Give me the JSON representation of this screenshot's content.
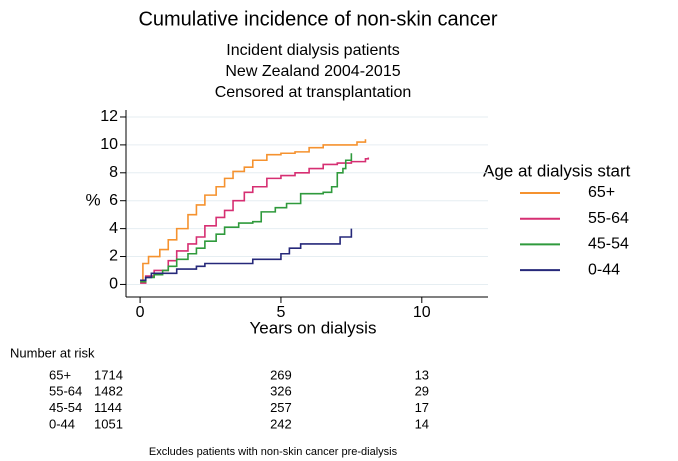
{
  "chart_data": {
    "type": "step",
    "title": "Cumulative incidence of non-skin cancer",
    "subtitles": [
      "Incident dialysis patients",
      "New Zealand 2004-2015",
      "Censored at transplantation"
    ],
    "x_label": "Years on dialysis",
    "y_label": "%",
    "xlim": [
      -0.5,
      12.35
    ],
    "ylim": [
      -0.9,
      12.5
    ],
    "xticks": [
      0,
      5,
      10
    ],
    "yticks": [
      0,
      2,
      4,
      6,
      8,
      10,
      12
    ],
    "grid": true,
    "legend_title": "Age at dialysis start",
    "legend_position": "right",
    "series": [
      {
        "name": "65+",
        "color": "#f5922f",
        "x": [
          0,
          0.1,
          0.3,
          0.7,
          1,
          1.3,
          1.7,
          2,
          2.3,
          2.7,
          3,
          3.3,
          3.7,
          4,
          4.5,
          5,
          5.5,
          6,
          6.5,
          7.5,
          7.7,
          8
        ],
        "values": [
          0.3,
          1.5,
          2,
          2.5,
          3.2,
          4,
          5,
          5.7,
          6.4,
          7,
          7.6,
          8.1,
          8.4,
          8.9,
          9.3,
          9.4,
          9.5,
          9.8,
          10,
          10,
          10.2,
          10.4
        ]
      },
      {
        "name": "55-64",
        "color": "#d62f72",
        "x": [
          0,
          0.2,
          0.5,
          1,
          1.3,
          1.7,
          2,
          2.3,
          2.7,
          3,
          3.3,
          3.7,
          4,
          4.5,
          5,
          5.5,
          6,
          6.5,
          7,
          7.5,
          8,
          8.1
        ],
        "values": [
          0.1,
          0.6,
          1,
          1.7,
          2.4,
          2.9,
          3.4,
          4.2,
          4.8,
          5.3,
          6,
          6.6,
          7,
          7.6,
          7.8,
          8,
          8.3,
          8.6,
          8.7,
          8.8,
          9,
          9.1
        ]
      },
      {
        "name": "45-54",
        "color": "#2f9a3c",
        "x": [
          0,
          0.2,
          0.5,
          0.8,
          1,
          1.3,
          1.7,
          2,
          2.3,
          2.7,
          3,
          3.5,
          4,
          4.3,
          4.8,
          5.2,
          5.7,
          6.5,
          6.8,
          7,
          7.2,
          7.3,
          7.5
        ],
        "values": [
          0.2,
          0.5,
          0.7,
          1,
          1.3,
          1.8,
          2.2,
          2.6,
          3.1,
          3.6,
          4.1,
          4.4,
          4.5,
          5.2,
          5.5,
          5.8,
          6.5,
          6.6,
          7,
          8,
          8.3,
          8.9,
          9.4
        ]
      },
      {
        "name": "0-44",
        "color": "#26287a",
        "x": [
          0,
          0.2,
          0.4,
          1,
          1.3,
          2,
          2.3,
          3,
          4,
          5,
          5.3,
          5.7,
          6.5,
          7.1,
          7.5,
          7.5
        ],
        "values": [
          0.3,
          0.5,
          0.8,
          0.8,
          1.1,
          1.3,
          1.5,
          1.5,
          1.8,
          2.2,
          2.6,
          2.9,
          2.9,
          3.4,
          3.4,
          4
        ]
      }
    ],
    "risk_table": {
      "title": "Number at risk",
      "rows": [
        {
          "label": "65+",
          "counts": [
            1714,
            269,
            13
          ]
        },
        {
          "label": "55-64",
          "counts": [
            1482,
            326,
            29
          ]
        },
        {
          "label": "45-54",
          "counts": [
            1144,
            257,
            17
          ]
        },
        {
          "label": "0-44",
          "counts": [
            1051,
            242,
            14
          ]
        }
      ]
    },
    "footnote": "Excludes patients with non-skin cancer pre-dialysis"
  }
}
